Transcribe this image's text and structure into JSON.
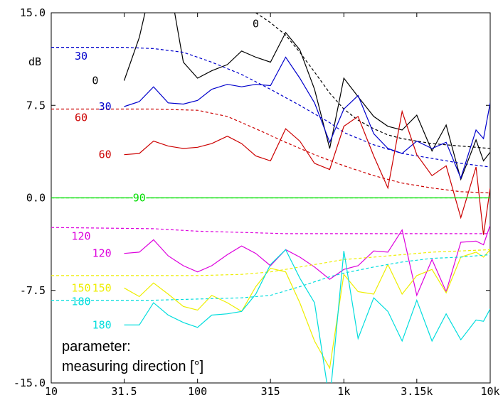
{
  "chart_data": {
    "type": "line",
    "title": "",
    "xlabel": "",
    "ylabel": "dB",
    "x_scale": "log",
    "xlim": [
      10,
      10000
    ],
    "ylim": [
      -15,
      15
    ],
    "x_ticks": [
      {
        "value": 10,
        "label": "10"
      },
      {
        "value": 31.5,
        "label": "31.5"
      },
      {
        "value": 100,
        "label": "100"
      },
      {
        "value": 315,
        "label": "315"
      },
      {
        "value": 1000,
        "label": "1k"
      },
      {
        "value": 3150,
        "label": "3.15k"
      },
      {
        "value": 10000,
        "label": "10k"
      }
    ],
    "y_ticks": [
      {
        "value": 15,
        "label": "15.0"
      },
      {
        "value": 7.5,
        "label": "7.5"
      },
      {
        "value": 0,
        "label": "0.0"
      },
      {
        "value": -7.5,
        "label": "-7.5"
      },
      {
        "value": -15,
        "label": "-15.0"
      }
    ],
    "grid": false,
    "note_lines": [
      "parameter:",
      "measuring direction [°]"
    ],
    "series": [
      {
        "name": "0",
        "style": "solid",
        "color": "#000000",
        "label_at": [
          22,
          9.5
        ],
        "points": [
          [
            31.5,
            9.5
          ],
          [
            40,
            13
          ],
          [
            50,
            18
          ],
          [
            63,
            18
          ],
          [
            80,
            11
          ],
          [
            100,
            9.7
          ],
          [
            125,
            10.3
          ],
          [
            160,
            10.8
          ],
          [
            200,
            11.9
          ],
          [
            250,
            11.4
          ],
          [
            315,
            11.0
          ],
          [
            400,
            13.4
          ],
          [
            500,
            12
          ],
          [
            630,
            8.8
          ],
          [
            800,
            4.0
          ],
          [
            1000,
            9.7
          ],
          [
            1250,
            8.2
          ],
          [
            1600,
            6.6
          ],
          [
            2000,
            5.8
          ],
          [
            2500,
            5.5
          ],
          [
            3150,
            6.7
          ],
          [
            4000,
            3.8
          ],
          [
            5000,
            5.9
          ],
          [
            6300,
            1.5
          ],
          [
            8000,
            4.7
          ],
          [
            9000,
            3.0
          ],
          [
            10000,
            3.7
          ]
        ]
      },
      {
        "name": "0",
        "style": "dashed",
        "color": "#000000",
        "label_at": [
          250,
          14.1
        ],
        "points": [
          [
            250,
            15
          ],
          [
            315,
            14.2
          ],
          [
            400,
            13.2
          ],
          [
            500,
            11.8
          ],
          [
            630,
            10.2
          ],
          [
            800,
            8.5
          ],
          [
            1000,
            7.2
          ],
          [
            1250,
            6.3
          ],
          [
            1600,
            5.6
          ],
          [
            2000,
            5.1
          ],
          [
            2500,
            4.8
          ],
          [
            3150,
            4.6
          ],
          [
            4000,
            4.4
          ],
          [
            5000,
            4.3
          ],
          [
            6300,
            4.2
          ],
          [
            8000,
            4.1
          ],
          [
            10000,
            4.0
          ]
        ]
      },
      {
        "name": "30",
        "style": "solid",
        "color": "#0000cc",
        "label_at": [
          27,
          7.4
        ],
        "points": [
          [
            31.5,
            7.4
          ],
          [
            40,
            7.8
          ],
          [
            50,
            9.0
          ],
          [
            63,
            7.7
          ],
          [
            80,
            7.6
          ],
          [
            100,
            7.9
          ],
          [
            125,
            8.8
          ],
          [
            160,
            9.2
          ],
          [
            200,
            9.0
          ],
          [
            250,
            9.2
          ],
          [
            315,
            9.1
          ],
          [
            400,
            11.4
          ],
          [
            500,
            9.7
          ],
          [
            630,
            7.7
          ],
          [
            800,
            4.5
          ],
          [
            1000,
            7.2
          ],
          [
            1250,
            8.3
          ],
          [
            1600,
            5.2
          ],
          [
            2000,
            4.0
          ],
          [
            2500,
            3.6
          ],
          [
            3150,
            4.6
          ],
          [
            4000,
            4.0
          ],
          [
            5000,
            4.5
          ],
          [
            6300,
            1.6
          ],
          [
            8000,
            5.5
          ],
          [
            9000,
            4.8
          ],
          [
            10000,
            7.7
          ]
        ]
      },
      {
        "name": "30",
        "style": "dashed",
        "color": "#0000cc",
        "label_at": [
          16,
          11.5
        ],
        "points": [
          [
            10,
            12.2
          ],
          [
            31.5,
            12.2
          ],
          [
            50,
            12.1
          ],
          [
            80,
            11.8
          ],
          [
            125,
            11.0
          ],
          [
            200,
            10.0
          ],
          [
            315,
            8.8
          ],
          [
            500,
            7.5
          ],
          [
            800,
            6.1
          ],
          [
            1000,
            5.3
          ],
          [
            1600,
            4.3
          ],
          [
            2500,
            3.6
          ],
          [
            4000,
            3.2
          ],
          [
            6300,
            2.8
          ],
          [
            10000,
            2.5
          ]
        ]
      },
      {
        "name": "60",
        "style": "solid",
        "color": "#cc0000",
        "label_at": [
          27,
          3.5
        ],
        "points": [
          [
            31.5,
            3.5
          ],
          [
            40,
            3.6
          ],
          [
            50,
            4.6
          ],
          [
            63,
            4.2
          ],
          [
            80,
            4.0
          ],
          [
            100,
            4.1
          ],
          [
            125,
            4.4
          ],
          [
            160,
            5.0
          ],
          [
            200,
            4.4
          ],
          [
            250,
            3.4
          ],
          [
            315,
            3.0
          ],
          [
            400,
            5.6
          ],
          [
            500,
            4.6
          ],
          [
            630,
            2.8
          ],
          [
            800,
            2.3
          ],
          [
            1000,
            5.8
          ],
          [
            1250,
            6.6
          ],
          [
            1600,
            3.4
          ],
          [
            2000,
            0.8
          ],
          [
            2500,
            7.0
          ],
          [
            3150,
            3.5
          ],
          [
            4000,
            1.8
          ],
          [
            5000,
            2.6
          ],
          [
            6300,
            -1.6
          ],
          [
            8000,
            2.5
          ],
          [
            9000,
            -3.0
          ],
          [
            10000,
            0.8
          ]
        ]
      },
      {
        "name": "60",
        "style": "dashed",
        "color": "#cc0000",
        "label_at": [
          16,
          6.5
        ],
        "points": [
          [
            10,
            7.2
          ],
          [
            50,
            7.2
          ],
          [
            100,
            7.1
          ],
          [
            160,
            6.6
          ],
          [
            250,
            5.6
          ],
          [
            400,
            4.5
          ],
          [
            630,
            3.5
          ],
          [
            1000,
            2.6
          ],
          [
            1600,
            1.8
          ],
          [
            2500,
            1.2
          ],
          [
            4000,
            0.8
          ],
          [
            6300,
            0.5
          ],
          [
            10000,
            0.4
          ]
        ]
      },
      {
        "name": "90",
        "style": "solid",
        "color": "#00dd00",
        "label_at": [
          40,
          0
        ],
        "points": [
          [
            10,
            0
          ],
          [
            10000,
            0
          ]
        ]
      },
      {
        "name": "90",
        "style": "dashed",
        "color": "#00dd00",
        "label_at": [
          40,
          0
        ],
        "points": [
          [
            10,
            0
          ],
          [
            10000,
            0
          ]
        ]
      },
      {
        "name": "120",
        "style": "solid",
        "color": "#dd00dd",
        "label_at": [
          27,
          -4.5
        ],
        "points": [
          [
            31.5,
            -4.5
          ],
          [
            40,
            -4.4
          ],
          [
            50,
            -3.4
          ],
          [
            63,
            -4.7
          ],
          [
            80,
            -5.5
          ],
          [
            100,
            -6.0
          ],
          [
            125,
            -5.5
          ],
          [
            160,
            -4.6
          ],
          [
            200,
            -3.9
          ],
          [
            250,
            -4.5
          ],
          [
            315,
            -5.5
          ],
          [
            400,
            -4.2
          ],
          [
            500,
            -4.8
          ],
          [
            630,
            -5.6
          ],
          [
            800,
            -6.6
          ],
          [
            1000,
            -5.8
          ],
          [
            1250,
            -5.5
          ],
          [
            1600,
            -4.3
          ],
          [
            2000,
            -4.4
          ],
          [
            2500,
            -2.6
          ],
          [
            3150,
            -7.9
          ],
          [
            4000,
            -5.0
          ],
          [
            5000,
            -7.6
          ],
          [
            6300,
            -3.6
          ],
          [
            8000,
            -3.5
          ],
          [
            9000,
            -3.8
          ],
          [
            10000,
            -2.2
          ]
        ]
      },
      {
        "name": "120",
        "style": "dashed",
        "color": "#dd00dd",
        "label_at": [
          16,
          -3.1
        ],
        "points": [
          [
            10,
            -2.4
          ],
          [
            50,
            -2.5
          ],
          [
            100,
            -2.7
          ],
          [
            200,
            -2.8
          ],
          [
            400,
            -2.9
          ],
          [
            800,
            -2.9
          ],
          [
            2000,
            -2.9
          ],
          [
            5000,
            -2.9
          ],
          [
            10000,
            -2.9
          ]
        ]
      },
      {
        "name": "150",
        "style": "solid",
        "color": "#eeee00",
        "label_at": [
          27,
          -7.3
        ],
        "points": [
          [
            31.5,
            -7.3
          ],
          [
            40,
            -8.0
          ],
          [
            50,
            -6.9
          ],
          [
            63,
            -7.8
          ],
          [
            80,
            -8.8
          ],
          [
            100,
            -9.1
          ],
          [
            125,
            -7.9
          ],
          [
            160,
            -8.5
          ],
          [
            200,
            -9.2
          ],
          [
            250,
            -7.2
          ],
          [
            315,
            -5.7
          ],
          [
            400,
            -6.0
          ],
          [
            500,
            -8.5
          ],
          [
            630,
            -11.6
          ],
          [
            800,
            -13.8
          ],
          [
            1000,
            -6.2
          ],
          [
            1250,
            -7.6
          ],
          [
            1600,
            -7.8
          ],
          [
            2000,
            -5.4
          ],
          [
            2500,
            -7.8
          ],
          [
            3150,
            -6.3
          ],
          [
            4000,
            -5.8
          ],
          [
            5000,
            -7.7
          ],
          [
            6300,
            -4.8
          ],
          [
            8000,
            -4.4
          ],
          [
            9000,
            -4.8
          ],
          [
            10000,
            -4.2
          ]
        ]
      },
      {
        "name": "150",
        "style": "dashed",
        "color": "#eeee00",
        "label_at": [
          16,
          -7.3
        ],
        "points": [
          [
            10,
            -6.3
          ],
          [
            50,
            -6.3
          ],
          [
            100,
            -6.3
          ],
          [
            200,
            -6.2
          ],
          [
            315,
            -6.0
          ],
          [
            500,
            -5.6
          ],
          [
            800,
            -5.2
          ],
          [
            1000,
            -5.0
          ],
          [
            1600,
            -4.8
          ],
          [
            2500,
            -4.6
          ],
          [
            4000,
            -4.4
          ],
          [
            6300,
            -4.3
          ],
          [
            10000,
            -4.2
          ]
        ]
      },
      {
        "name": "180",
        "style": "solid",
        "color": "#00dddd",
        "label_at": [
          27,
          -10.3
        ],
        "points": [
          [
            31.5,
            -10.3
          ],
          [
            40,
            -10.3
          ],
          [
            50,
            -8.5
          ],
          [
            63,
            -9.5
          ],
          [
            80,
            -10.1
          ],
          [
            100,
            -10.5
          ],
          [
            125,
            -9.5
          ],
          [
            160,
            -9.4
          ],
          [
            200,
            -9.2
          ],
          [
            250,
            -7.8
          ],
          [
            315,
            -5.4
          ],
          [
            400,
            -4.2
          ],
          [
            500,
            -6.5
          ],
          [
            630,
            -8.5
          ],
          [
            800,
            -16.5
          ],
          [
            1000,
            -4.3
          ],
          [
            1250,
            -11.4
          ],
          [
            1600,
            -8.1
          ],
          [
            2000,
            -9.2
          ],
          [
            2500,
            -11.6
          ],
          [
            3150,
            -8.3
          ],
          [
            4000,
            -11.6
          ],
          [
            5000,
            -9.4
          ],
          [
            6300,
            -11.5
          ],
          [
            8000,
            -9.9
          ],
          [
            9000,
            -10.0
          ],
          [
            10000,
            -9.0
          ]
        ]
      },
      {
        "name": "180",
        "style": "dashed",
        "color": "#00dddd",
        "label_at": [
          16,
          -8.4
        ],
        "points": [
          [
            10,
            -8.3
          ],
          [
            50,
            -8.3
          ],
          [
            100,
            -8.2
          ],
          [
            200,
            -8.1
          ],
          [
            315,
            -7.9
          ],
          [
            500,
            -7.2
          ],
          [
            800,
            -6.4
          ],
          [
            1000,
            -6.1
          ],
          [
            1600,
            -5.6
          ],
          [
            2500,
            -5.2
          ],
          [
            4000,
            -4.9
          ],
          [
            6300,
            -4.8
          ],
          [
            10000,
            -4.6
          ]
        ]
      }
    ]
  }
}
